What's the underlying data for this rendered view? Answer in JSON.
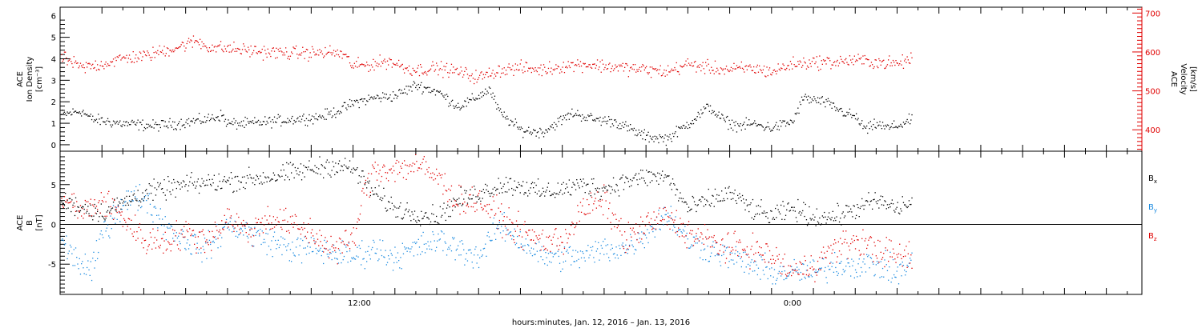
{
  "chart_data": [
    {
      "type": "scatter",
      "panel": "top",
      "left_axis": {
        "label_lines": [
          "ACE",
          "Ion Density",
          "[cm⁻³]"
        ],
        "ticks": [
          "0",
          "1",
          "2",
          "3",
          "4",
          "5",
          "6"
        ],
        "ylim": [
          -0.3,
          6.4
        ]
      },
      "right_axis": {
        "label_lines": [
          "ACE",
          "Velocity",
          "[km/s]"
        ],
        "ticks": [
          "400",
          "500",
          "600",
          "700"
        ],
        "ylim": [
          345,
          715
        ]
      },
      "colors": {
        "density": "#000000",
        "velocity": "#e00000"
      },
      "density_trend": [
        [
          0,
          1.4
        ],
        [
          1,
          1.6
        ],
        [
          1.5,
          1.2
        ],
        [
          3,
          1.0
        ],
        [
          4.5,
          0.9
        ],
        [
          5.5,
          1.0
        ],
        [
          7,
          1.2
        ],
        [
          7.7,
          1.4
        ],
        [
          8,
          1.0
        ],
        [
          9,
          1.0
        ],
        [
          10,
          1.1
        ],
        [
          11,
          1.2
        ],
        [
          12.3,
          1.3
        ],
        [
          13,
          1.5
        ],
        [
          13.5,
          1.7
        ],
        [
          14.1,
          2.0
        ],
        [
          15,
          2.2
        ],
        [
          16,
          2.3
        ],
        [
          17,
          2.8
        ],
        [
          18,
          2.5
        ],
        [
          19,
          1.8
        ],
        [
          19.5,
          2.0
        ],
        [
          20.5,
          2.6
        ],
        [
          21,
          1.5
        ],
        [
          22,
          0.7
        ],
        [
          23,
          0.6
        ],
        [
          24.5,
          1.5
        ],
        [
          25.5,
          1.2
        ],
        [
          26.5,
          1.1
        ],
        [
          27.5,
          0.6
        ],
        [
          28,
          0.4
        ],
        [
          29,
          0.3
        ],
        [
          30,
          1.0
        ],
        [
          31,
          1.8
        ],
        [
          31.5,
          1.3
        ],
        [
          32,
          1.0
        ],
        [
          32.5,
          0.9
        ],
        [
          33,
          1.0
        ],
        [
          34,
          0.8
        ],
        [
          35,
          1.1
        ],
        [
          35.5,
          2.2
        ],
        [
          36.5,
          2.0
        ],
        [
          37.5,
          1.5
        ],
        [
          38,
          1.3
        ],
        [
          38.5,
          0.7
        ],
        [
          39,
          1.0
        ],
        [
          39.5,
          0.8
        ],
        [
          40,
          0.9
        ],
        [
          40.7,
          1.2
        ]
      ],
      "velocity_trend": [
        [
          0,
          590
        ],
        [
          1,
          560
        ],
        [
          2,
          570
        ],
        [
          3,
          585
        ],
        [
          4,
          590
        ],
        [
          5,
          605
        ],
        [
          6,
          620
        ],
        [
          6.5,
          630
        ],
        [
          7,
          615
        ],
        [
          7.5,
          612
        ],
        [
          8,
          610
        ],
        [
          9,
          605
        ],
        [
          10,
          600
        ],
        [
          11,
          598
        ],
        [
          12,
          598
        ],
        [
          13,
          600
        ],
        [
          13.5,
          595
        ],
        [
          14,
          565
        ],
        [
          15,
          570
        ],
        [
          15.7,
          578
        ],
        [
          16.5,
          560
        ],
        [
          17,
          555
        ],
        [
          18,
          560
        ],
        [
          19,
          550
        ],
        [
          20,
          535
        ],
        [
          21,
          555
        ],
        [
          22,
          560
        ],
        [
          23,
          555
        ],
        [
          24,
          565
        ],
        [
          25,
          570
        ],
        [
          26,
          565
        ],
        [
          27,
          560
        ],
        [
          28,
          555
        ],
        [
          29,
          550
        ],
        [
          30,
          570
        ],
        [
          31,
          560
        ],
        [
          32,
          555
        ],
        [
          33,
          560
        ],
        [
          34,
          550
        ],
        [
          35,
          570
        ],
        [
          36,
          575
        ],
        [
          37,
          575
        ],
        [
          38,
          580
        ],
        [
          39,
          575
        ],
        [
          40,
          570
        ],
        [
          40.7,
          585
        ]
      ]
    },
    {
      "type": "scatter",
      "panel": "bottom",
      "left_axis": {
        "label_lines": [
          "ACE",
          "B",
          "[nT]"
        ],
        "ticks": [
          "-5",
          "0",
          "5"
        ],
        "ylim": [
          -8.8,
          9.2
        ]
      },
      "legend": [
        {
          "name": "B",
          "sub": "x",
          "color": "#000000"
        },
        {
          "name": "B",
          "sub": "y",
          "color": "#1a8ae0"
        },
        {
          "name": "B",
          "sub": "z",
          "color": "#e00000"
        }
      ],
      "bx_trend": [
        [
          0,
          3
        ],
        [
          2,
          1.5
        ],
        [
          4,
          4
        ],
        [
          6,
          5
        ],
        [
          8,
          5.5
        ],
        [
          10,
          6
        ],
        [
          12,
          7
        ],
        [
          13,
          7.5
        ],
        [
          14,
          7
        ],
        [
          15,
          4
        ],
        [
          16,
          2
        ],
        [
          17,
          1.5
        ],
        [
          18,
          1
        ],
        [
          19,
          3
        ],
        [
          20,
          4
        ],
        [
          21,
          5
        ],
        [
          22,
          5
        ],
        [
          23,
          4
        ],
        [
          24,
          4.5
        ],
        [
          25,
          5
        ],
        [
          26,
          4.5
        ],
        [
          27,
          5.5
        ],
        [
          28,
          6
        ],
        [
          29,
          6
        ],
        [
          30,
          2
        ],
        [
          31,
          3
        ],
        [
          32,
          4
        ],
        [
          33,
          2
        ],
        [
          34,
          1
        ],
        [
          35,
          2
        ],
        [
          36,
          1
        ],
        [
          37,
          1
        ],
        [
          38,
          2
        ],
        [
          39,
          3
        ],
        [
          40,
          2
        ],
        [
          40.7,
          3
        ]
      ],
      "by_trend": [
        [
          0,
          -2
        ],
        [
          1,
          -5
        ],
        [
          1.5,
          -6
        ],
        [
          2,
          -1
        ],
        [
          3,
          3
        ],
        [
          4,
          3.5
        ],
        [
          5,
          0
        ],
        [
          6,
          -2
        ],
        [
          7,
          -3
        ],
        [
          8,
          0
        ],
        [
          9,
          -1
        ],
        [
          10,
          -2
        ],
        [
          11,
          -3
        ],
        [
          12,
          -3
        ],
        [
          13,
          -3.5
        ],
        [
          14,
          -4
        ],
        [
          15,
          -3
        ],
        [
          16,
          -4
        ],
        [
          17,
          -3
        ],
        [
          18,
          -2
        ],
        [
          19,
          -3
        ],
        [
          20,
          -4
        ],
        [
          21,
          0
        ],
        [
          22,
          -2
        ],
        [
          23,
          -4
        ],
        [
          24,
          -4
        ],
        [
          25,
          -4
        ],
        [
          26,
          -3
        ],
        [
          27,
          -3
        ],
        [
          28,
          -1
        ],
        [
          29,
          1.5
        ],
        [
          30,
          -2
        ],
        [
          31,
          -3
        ],
        [
          32,
          -4
        ],
        [
          33,
          -5
        ],
        [
          34,
          -6
        ],
        [
          35,
          -6
        ],
        [
          36,
          -6
        ],
        [
          37,
          -5
        ],
        [
          38,
          -5
        ],
        [
          39,
          -5
        ],
        [
          40,
          -6
        ],
        [
          40.7,
          -5
        ]
      ],
      "bz_trend": [
        [
          0,
          4
        ],
        [
          1,
          1.5
        ],
        [
          2,
          3
        ],
        [
          3,
          1
        ],
        [
          4,
          -2
        ],
        [
          5,
          -2
        ],
        [
          6,
          -1
        ],
        [
          7,
          -2
        ],
        [
          8,
          1
        ],
        [
          9,
          -1
        ],
        [
          10,
          1
        ],
        [
          11,
          0
        ],
        [
          12,
          -1
        ],
        [
          13,
          -3
        ],
        [
          14,
          -2
        ],
        [
          14.5,
          4
        ],
        [
          15,
          7
        ],
        [
          16,
          7
        ],
        [
          17,
          7.5
        ],
        [
          18,
          6
        ],
        [
          19,
          3
        ],
        [
          20,
          3
        ],
        [
          21,
          1
        ],
        [
          22,
          -1
        ],
        [
          23,
          -2
        ],
        [
          24,
          -2
        ],
        [
          25,
          2
        ],
        [
          26,
          3
        ],
        [
          27,
          -2
        ],
        [
          28,
          0
        ],
        [
          29,
          1
        ],
        [
          30,
          -1
        ],
        [
          31,
          -2
        ],
        [
          32,
          -3
        ],
        [
          33,
          -3
        ],
        [
          34,
          -4
        ],
        [
          35,
          -6
        ],
        [
          36,
          -5
        ],
        [
          37,
          -3
        ],
        [
          38,
          -2
        ],
        [
          39,
          -3
        ],
        [
          40,
          -4
        ],
        [
          40.7,
          -4
        ]
      ]
    }
  ],
  "x_axis": {
    "xlim": [
      0,
      51.7
    ],
    "label": "hours:minutes, Jan. 12, 2016 – Jan. 13, 2016",
    "tick_labels": [
      {
        "label": "12:00",
        "hour": 14.3
      },
      {
        "label": "0:00",
        "hour": 35.0
      }
    ],
    "data_end_hour": 40.7
  }
}
